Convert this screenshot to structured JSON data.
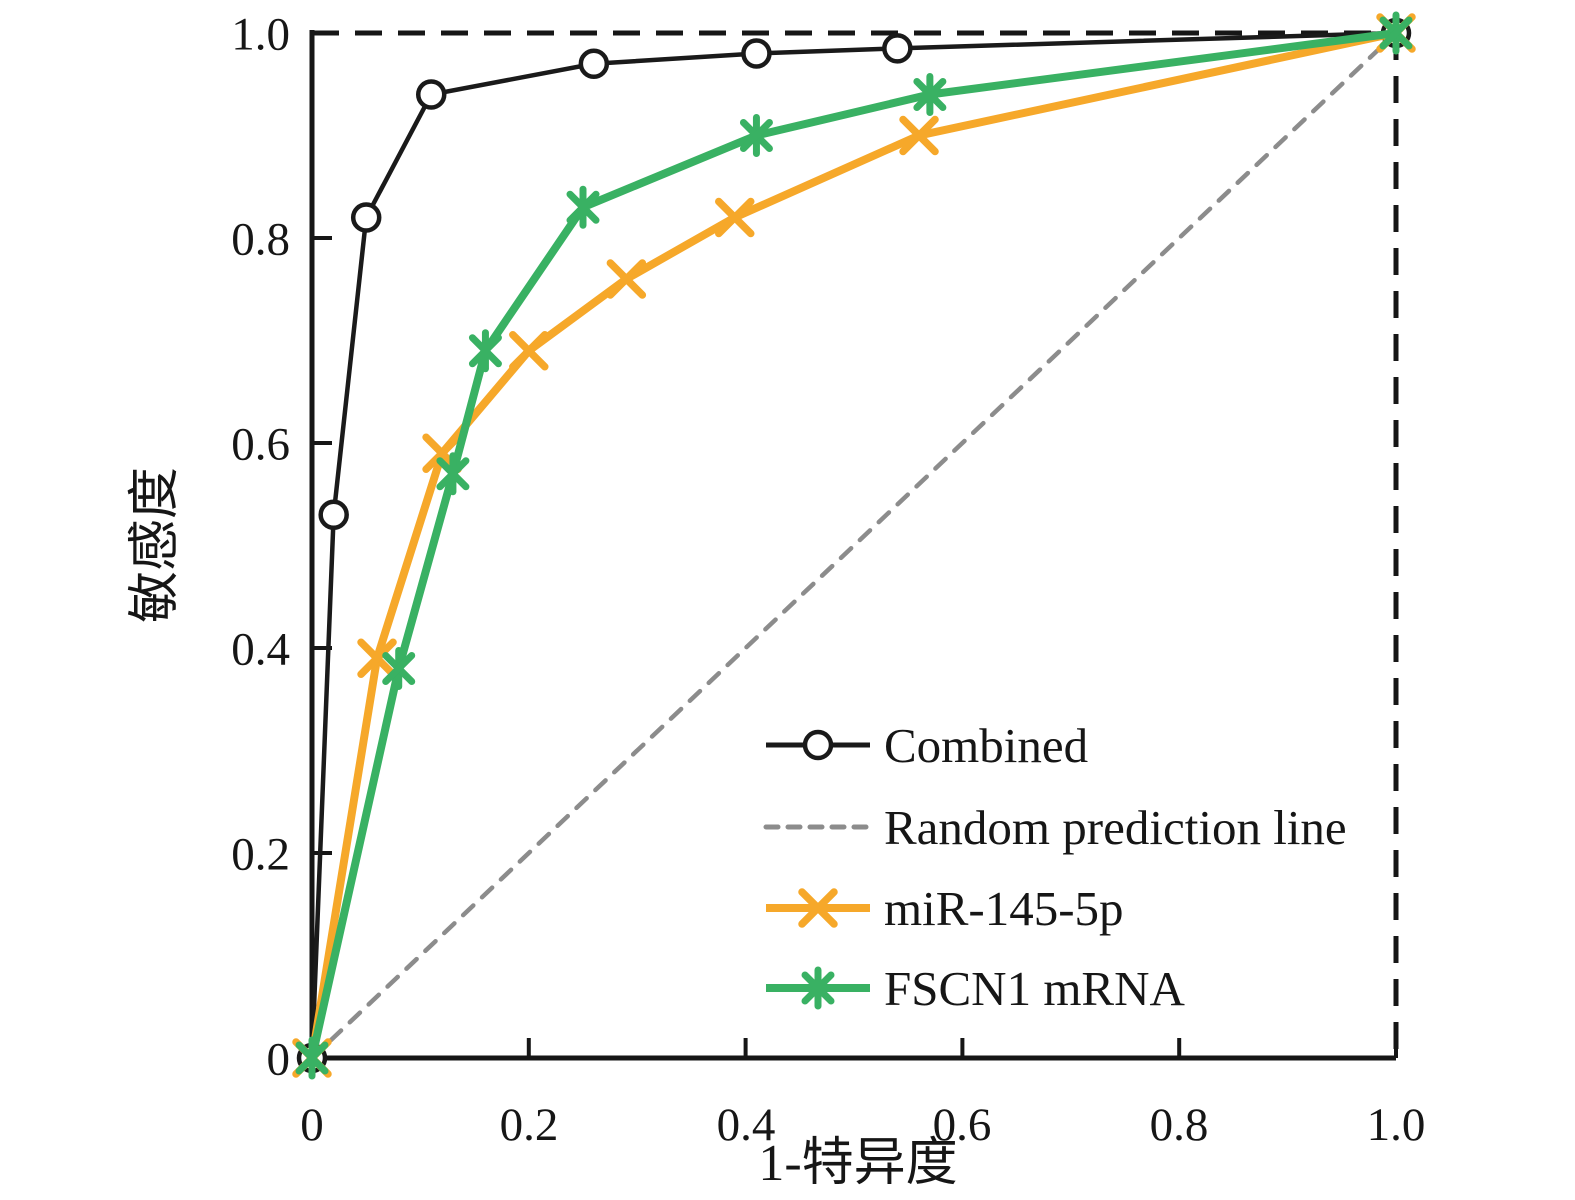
{
  "figure": {
    "type_note": "ROC curve figure",
    "background": "#ffffff"
  },
  "axes": {
    "x": {
      "label": "1-特异度",
      "ticks": [
        "0",
        "0.2",
        "0.4",
        "0.6",
        "0.8",
        "1.0"
      ],
      "range": [
        0,
        1
      ]
    },
    "y": {
      "label": "敏感度",
      "ticks": [
        "0",
        "0.2",
        "0.4",
        "0.6",
        "0.8",
        "1.0"
      ],
      "range": [
        0,
        1
      ]
    }
  },
  "legend": [
    {
      "label": "Combined",
      "series": "Combined"
    },
    {
      "label": "Random prediction line",
      "series": "Random prediction line"
    },
    {
      "label": "miR-145-5p",
      "series": "miR-145-5p"
    },
    {
      "label": "FSCN1 mRNA",
      "series": "FSCN1 mRNA"
    }
  ],
  "colors": {
    "combined": "#1a1a1a",
    "random_prediction": "#8c8c8c",
    "mir_145_5p": "#f6a82a",
    "fscn1_mrna": "#39b163",
    "axis": "#161616",
    "text": "#161616",
    "background": "#ffffff"
  },
  "chart_data": {
    "type": "line",
    "title": "",
    "xlabel": "1-特异度",
    "ylabel": "敏感度",
    "xlim": [
      0,
      1
    ],
    "ylim": [
      0,
      1
    ],
    "x_ticks": [
      0,
      0.2,
      0.4,
      0.6,
      0.8,
      1.0
    ],
    "y_ticks": [
      0,
      0.2,
      0.4,
      0.6,
      0.8,
      1.0
    ],
    "grid": false,
    "legend_position": "inside-lower-right",
    "plot_border": {
      "left": "solid",
      "bottom": "solid",
      "top": "dashed-black",
      "right": "dashed-black"
    },
    "series": [
      {
        "name": "Combined",
        "color": "#1a1a1a",
        "style": "solid",
        "marker": "circle-open",
        "line_width": 4.5,
        "points": [
          [
            0,
            0
          ],
          [
            0.02,
            0.53
          ],
          [
            0.05,
            0.82
          ],
          [
            0.11,
            0.94
          ],
          [
            0.26,
            0.97
          ],
          [
            0.41,
            0.98
          ],
          [
            0.54,
            0.985
          ],
          [
            1.0,
            1.0
          ]
        ]
      },
      {
        "name": "Random prediction line",
        "color": "#8c8c8c",
        "style": "dashed",
        "marker": "none",
        "line_width": 4.5,
        "points": [
          [
            0,
            0
          ],
          [
            1.0,
            1.0
          ]
        ]
      },
      {
        "name": "miR-145-5p",
        "color": "#f6a82a",
        "style": "solid",
        "marker": "x",
        "line_width": 8,
        "points": [
          [
            0,
            0
          ],
          [
            0.06,
            0.39
          ],
          [
            0.12,
            0.59
          ],
          [
            0.2,
            0.69
          ],
          [
            0.29,
            0.76
          ],
          [
            0.39,
            0.82
          ],
          [
            0.56,
            0.9
          ],
          [
            1.0,
            1.0
          ]
        ]
      },
      {
        "name": "FSCN1 mRNA",
        "color": "#39b163",
        "style": "solid",
        "marker": "asterisk",
        "line_width": 8,
        "points": [
          [
            0,
            0
          ],
          [
            0.08,
            0.38
          ],
          [
            0.13,
            0.57
          ],
          [
            0.16,
            0.69
          ],
          [
            0.25,
            0.83
          ],
          [
            0.41,
            0.9
          ],
          [
            0.57,
            0.94
          ],
          [
            1.0,
            1.0
          ]
        ]
      }
    ]
  }
}
